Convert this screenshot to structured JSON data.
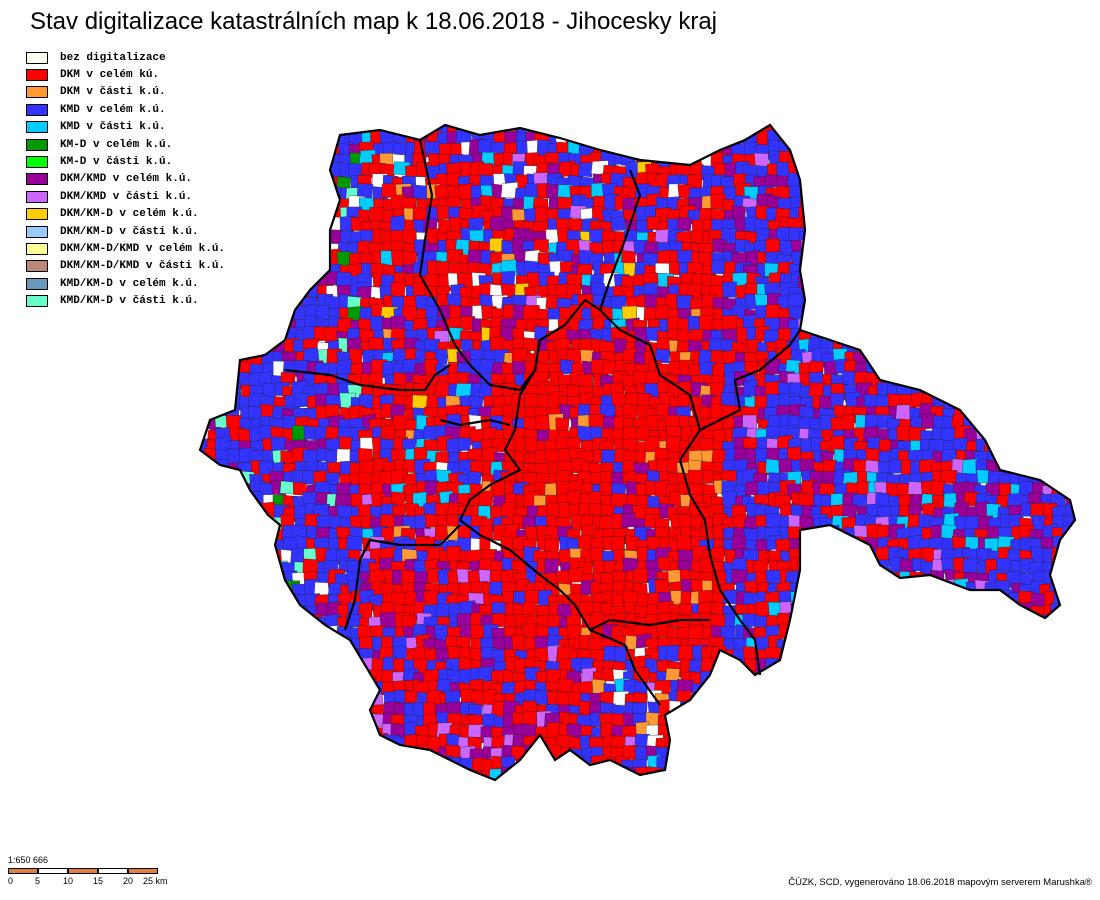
{
  "title": "Stav digitalizace katastrálních map k 18.06.2018 - Jihocesky kraj",
  "legend": [
    {
      "label": "bez digitalizace",
      "color": "#fffff0"
    },
    {
      "label": "DKM v celém kú.",
      "color": "#ff0000"
    },
    {
      "label": "DKM v části k.ú.",
      "color": "#ff9933"
    },
    {
      "label": "KMD v celém k.ú.",
      "color": "#3333ff"
    },
    {
      "label": "KMD v části k.ú.",
      "color": "#00ccff"
    },
    {
      "label": "KM-D v celém k.ú.",
      "color": "#009900"
    },
    {
      "label": "KM-D v části k.ú.",
      "color": "#00ff00"
    },
    {
      "label": "DKM/KMD v celém k.ú.",
      "color": "#990099"
    },
    {
      "label": "DKM/KMD v části k.ú.",
      "color": "#cc66ff"
    },
    {
      "label": "DKM/KM-D v celém k.ú.",
      "color": "#ffcc00"
    },
    {
      "label": "DKM/KM-D v části k.ú.",
      "color": "#99ccff"
    },
    {
      "label": "DKM/KM-D/KMD v celém k.ú.",
      "color": "#ffff99"
    },
    {
      "label": "DKM/KM-D/KMD v části k.ú.",
      "color": "#bb8877"
    },
    {
      "label": "KMD/KM-D v celém k.ú.",
      "color": "#6699bb"
    },
    {
      "label": "KMD/KM-D v části k.ú.",
      "color": "#66ffcc"
    }
  ],
  "scale": {
    "ratio": "1:650 666",
    "ticks": [
      "0",
      "5",
      "10",
      "15",
      "20",
      "25 km"
    ],
    "color": "#e08040"
  },
  "credit": "ČÚZK, SCD, vygenerováno 18.06.2018 mapovým serverem Marushka®"
}
